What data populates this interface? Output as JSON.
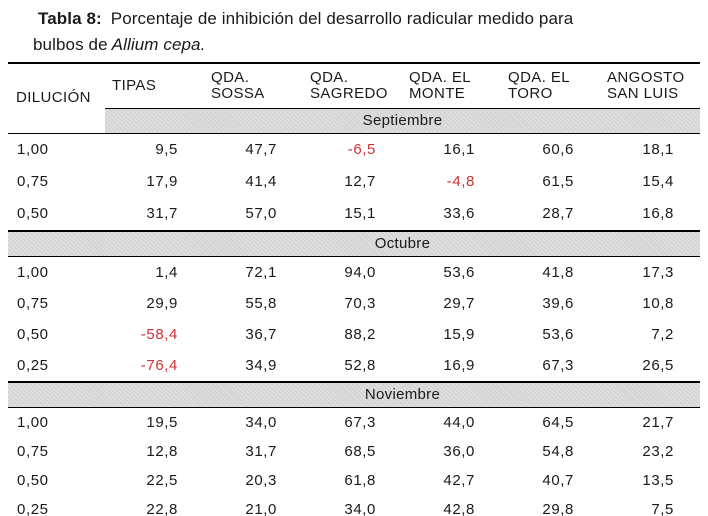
{
  "title": {
    "label": "Tabla 8:",
    "line1": "Porcentaje de inhibición del desarrollo radicular medido para",
    "line2": "bulbos de",
    "species": "Allium cepa."
  },
  "colors": {
    "negative_value": "#cc3333",
    "band_background": "#d8d8d8",
    "rule": "#000000",
    "text": "#1a1a1a"
  },
  "table": {
    "columns": [
      "DILUCIÓN",
      "TIPAS",
      "QDA.\nSOSSA",
      "QDA.\nSAGREDO",
      "QDA. EL\nMONTE",
      "QDA. EL\nTORO",
      "ANGOSTO\nSAN LUIS"
    ],
    "sections": [
      {
        "month": "Septiembre",
        "rows": [
          {
            "dilution": "1,00",
            "values": [
              "9,5",
              "47,7",
              "-6,5",
              "16,1",
              "60,6",
              "18,1"
            ]
          },
          {
            "dilution": "0,75",
            "values": [
              "17,9",
              "41,4",
              "12,7",
              "-4,8",
              "61,5",
              "15,4"
            ]
          },
          {
            "dilution": "0,50",
            "values": [
              "31,7",
              "57,0",
              "15,1",
              "33,6",
              "28,7",
              "16,8"
            ]
          }
        ]
      },
      {
        "month": "Octubre",
        "rows": [
          {
            "dilution": "1,00",
            "values": [
              "1,4",
              "72,1",
              "94,0",
              "53,6",
              "41,8",
              "17,3"
            ]
          },
          {
            "dilution": "0,75",
            "values": [
              "29,9",
              "55,8",
              "70,3",
              "29,7",
              "39,6",
              "10,8"
            ]
          },
          {
            "dilution": "0,50",
            "values": [
              "-58,4",
              "36,7",
              "88,2",
              "15,9",
              "53,6",
              "7,2"
            ]
          },
          {
            "dilution": "0,25",
            "values": [
              "-76,4",
              "34,9",
              "52,8",
              "16,9",
              "67,3",
              "26,5"
            ]
          }
        ]
      },
      {
        "month": "Noviembre",
        "rows": [
          {
            "dilution": "1,00",
            "values": [
              "19,5",
              "34,0",
              "67,3",
              "44,0",
              "64,5",
              "21,7"
            ]
          },
          {
            "dilution": "0,75",
            "values": [
              "12,8",
              "31,7",
              "68,5",
              "36,0",
              "54,8",
              "23,2"
            ]
          },
          {
            "dilution": "0,50",
            "values": [
              "22,5",
              "20,3",
              "61,8",
              "42,7",
              "40,7",
              "13,5"
            ]
          },
          {
            "dilution": "0,25",
            "values": [
              "22,8",
              "21,0",
              "34,0",
              "42,8",
              "29,8",
              "7,5"
            ]
          }
        ]
      }
    ]
  }
}
